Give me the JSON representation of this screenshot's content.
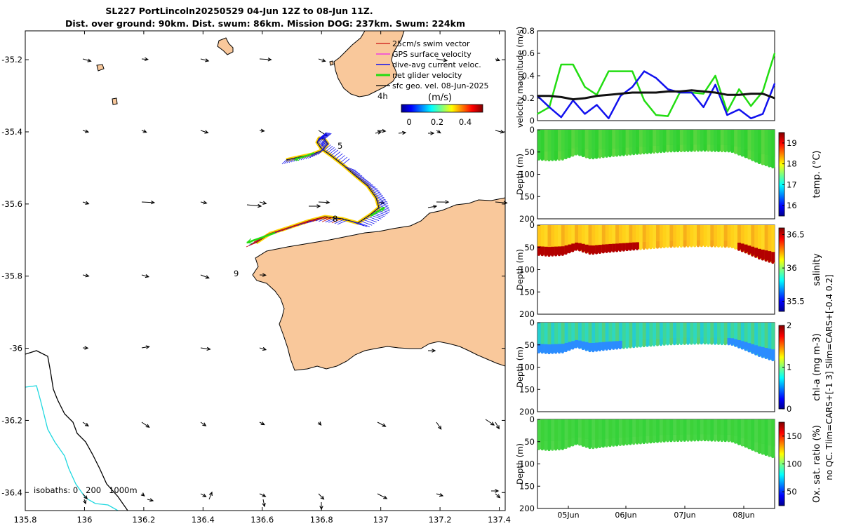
{
  "title": {
    "line1": "SL227 PortLincoln20250529 04-Jun 12Z to 08-Jun 11Z.",
    "line2": "Dist. over ground: 90km. Dist. swum: 86km. Mission DOG: 237km. Swum: 224km"
  },
  "colors": {
    "land": "#f9c89b",
    "isobath_0": "#000000",
    "isobath_200": "#1fd8e0",
    "net_velocity": "#22dd11",
    "dive_avg": "#1111ee",
    "swim_vector": "#cc1111",
    "gps_velocity": "#ee22ee",
    "geo_velocity": "#000000"
  },
  "chart_data": [
    {
      "type": "map",
      "xlim": [
        135.8,
        137.42
      ],
      "ylim": [
        -36.45,
        -35.12
      ],
      "xticks": [
        "135.8",
        "136",
        "136.2",
        "136.4",
        "136.6",
        "136.8",
        "137",
        "137.2",
        "137.4"
      ],
      "yticks": [
        "-35.2",
        "-35.4",
        "-35.6",
        "-35.8",
        "-36",
        "-36.2",
        "-36.4"
      ],
      "legend": [
        "25cm/s swim vector",
        "GPS surface velocity",
        "dive-avg current veloc.",
        "net glider velocity",
        "sfc geo. vel. 08-Jun-2025"
      ],
      "legend_extra": "4h",
      "colorbar": {
        "label": "(m/s)",
        "ticks": [
          "0",
          "0.2",
          "0.4"
        ],
        "range": [
          0,
          0.5
        ]
      },
      "day_labels": [
        "5",
        "8",
        "9"
      ],
      "isobaths_note": "isobaths: 0   200   1000m"
    },
    {
      "type": "line",
      "ylabel": "velocity magnitude (m/s)",
      "ylim": [
        0,
        0.8
      ],
      "yticks": [
        "0",
        "0.2",
        "0.4",
        "0.6",
        "0.8"
      ],
      "x": [
        0,
        0.05,
        0.1,
        0.15,
        0.2,
        0.25,
        0.3,
        0.35,
        0.4,
        0.45,
        0.5,
        0.55,
        0.6,
        0.65,
        0.7,
        0.75,
        0.8,
        0.85,
        0.9,
        0.95,
        1.0
      ],
      "series": [
        {
          "name": "net glider velocity",
          "values": [
            0.06,
            0.12,
            0.5,
            0.5,
            0.3,
            0.23,
            0.44,
            0.44,
            0.44,
            0.18,
            0.05,
            0.04,
            0.25,
            0.25,
            0.24,
            0.4,
            0.08,
            0.28,
            0.13,
            0.26,
            0.6
          ]
        },
        {
          "name": "dive-avg current veloc.",
          "values": [
            0.22,
            0.12,
            0.03,
            0.18,
            0.06,
            0.14,
            0.02,
            0.22,
            0.3,
            0.44,
            0.38,
            0.28,
            0.25,
            0.25,
            0.12,
            0.32,
            0.05,
            0.1,
            0.02,
            0.06,
            0.33
          ]
        },
        {
          "name": "sfc geo. vel.",
          "values": [
            0.22,
            0.22,
            0.21,
            0.19,
            0.2,
            0.22,
            0.23,
            0.24,
            0.25,
            0.25,
            0.25,
            0.26,
            0.26,
            0.27,
            0.26,
            0.25,
            0.23,
            0.23,
            0.24,
            0.24,
            0.2
          ]
        }
      ]
    },
    {
      "type": "heatmap",
      "ylabel": "Depth (m)",
      "cblabel": "temp. (°C)",
      "yticks": [
        "0",
        "50",
        "100",
        "150",
        "200"
      ],
      "cbticks": [
        "16",
        "17",
        "18",
        "19"
      ],
      "cbrange": [
        15.5,
        19.5
      ]
    },
    {
      "type": "heatmap",
      "ylabel": "Depth (m)",
      "cblabel": "salinity",
      "yticks": [
        "0",
        "50",
        "100",
        "150",
        "200"
      ],
      "cbticks": [
        "35.5",
        "36",
        "36.5"
      ],
      "cbrange": [
        35.35,
        36.6
      ]
    },
    {
      "type": "heatmap",
      "ylabel": "Depth (m)",
      "cblabel": "chl-a (mg m-3)",
      "yticks": [
        "0",
        "50",
        "100",
        "150",
        "200"
      ],
      "cbticks": [
        "0",
        "1",
        "2"
      ],
      "cbrange": [
        0,
        2
      ]
    },
    {
      "type": "heatmap",
      "ylabel": "Depth (m)",
      "cblabel": "Ox. sat. ratio (%)",
      "cblabel2": "no QC. Tlim=CARS+[-1 3] Slim=CARS+[-0.4 0.2]",
      "yticks": [
        "0",
        "50",
        "100",
        "150",
        "200"
      ],
      "cbticks": [
        "50",
        "100",
        "150"
      ],
      "cbrange": [
        25,
        175
      ],
      "xticks": [
        "05Jun",
        "06Jun",
        "07Jun",
        "08Jun"
      ]
    }
  ]
}
